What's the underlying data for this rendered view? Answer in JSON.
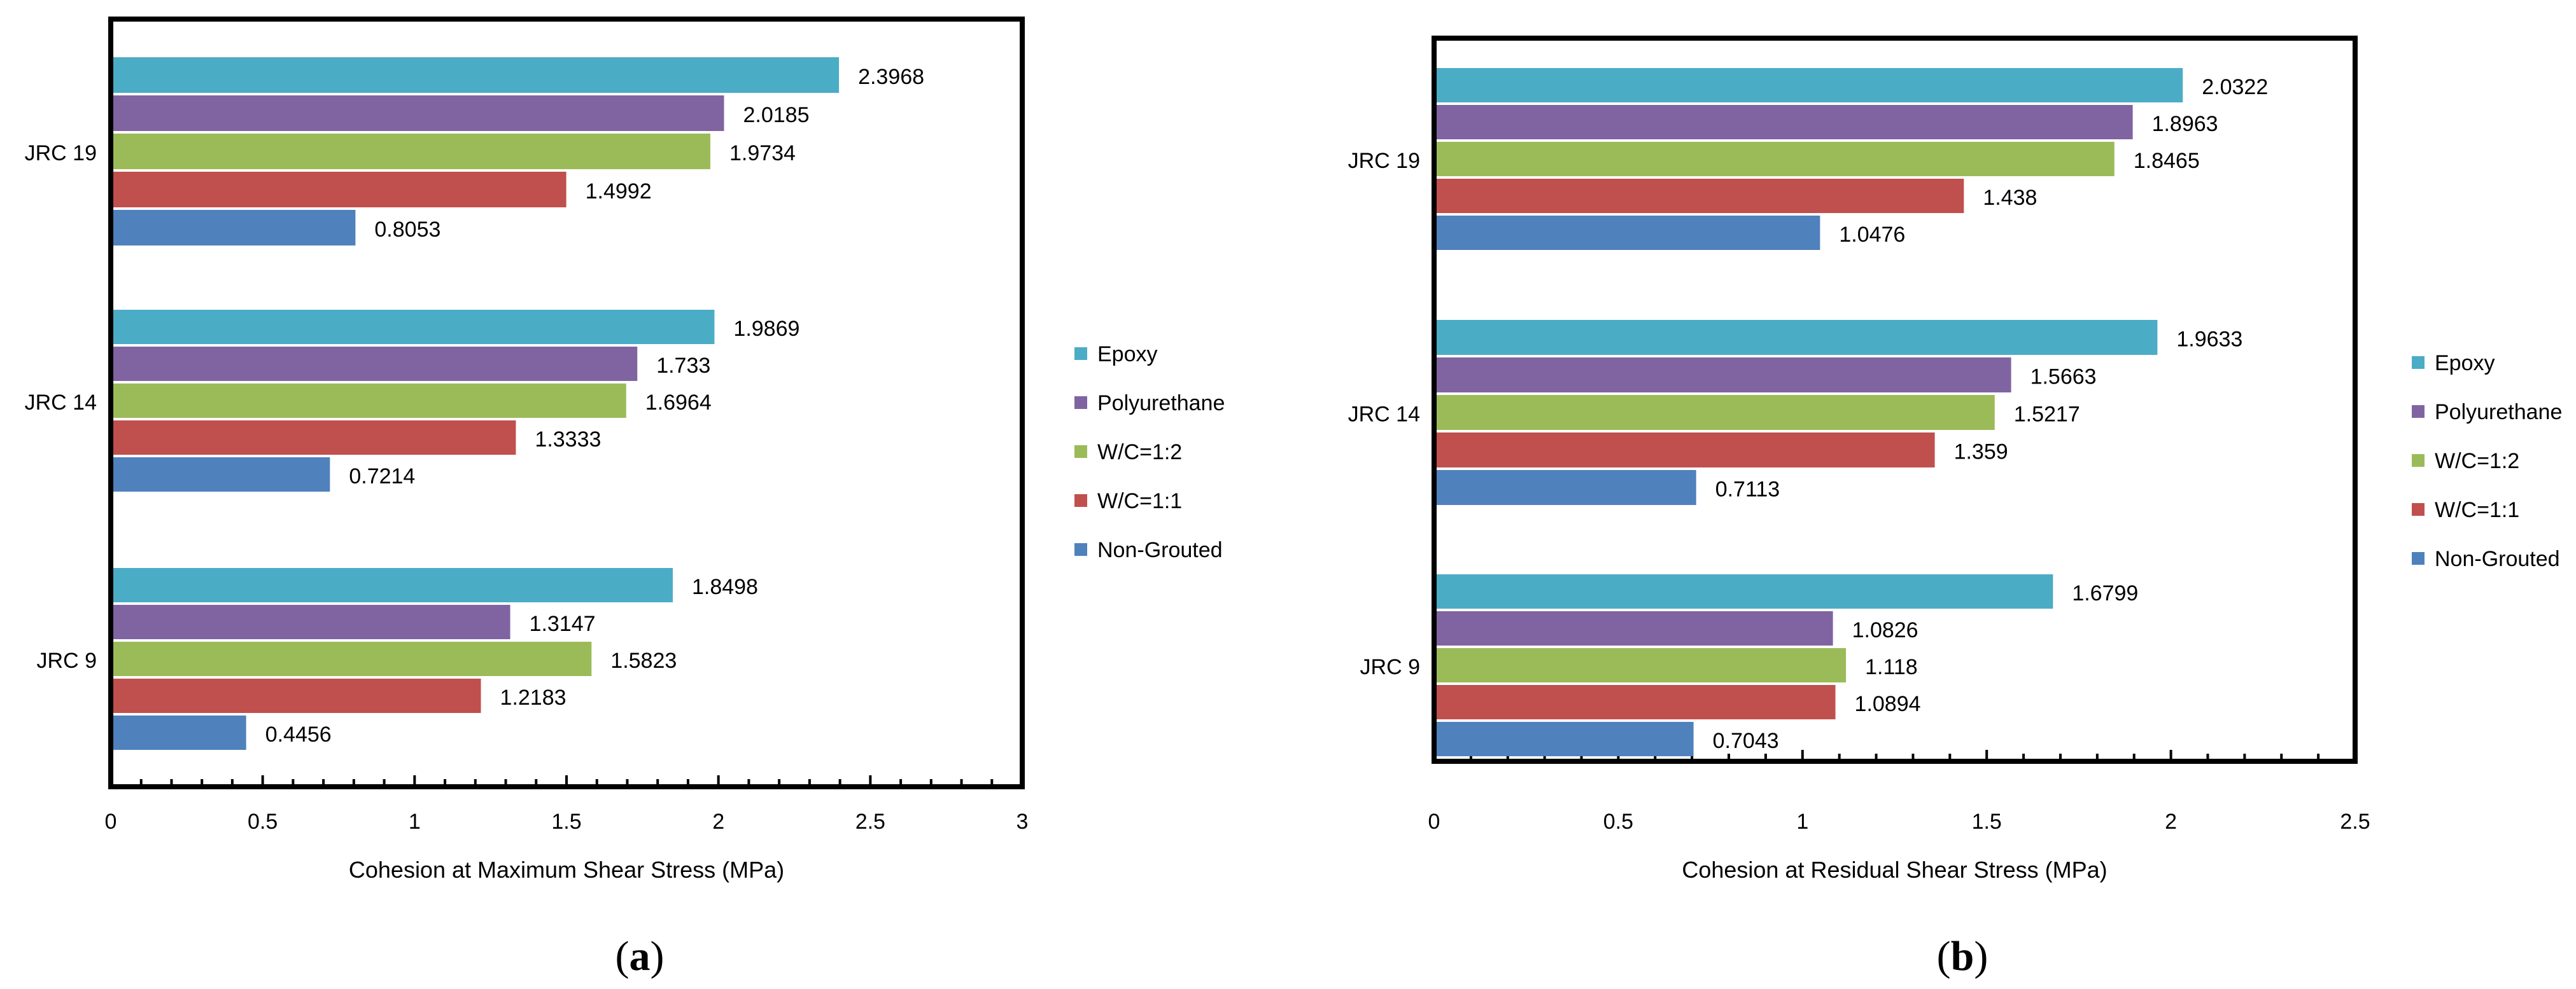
{
  "chart_data": [
    {
      "type": "bar",
      "orientation": "horizontal",
      "panel_label": "(a)",
      "panel_letter": "a",
      "xlabel": "Cohesion at Maximum Shear Stress (MPa)",
      "xlim": [
        0,
        3
      ],
      "xticks": [
        "0",
        "0.5",
        "1",
        "1.5",
        "2",
        "2.5",
        "3"
      ],
      "categories": [
        "JRC 19",
        "JRC 14",
        "JRC 9"
      ],
      "legend_position": "right",
      "series": [
        {
          "name": "Epoxy",
          "color": "#4BACC6",
          "values": [
            2.3968,
            1.9869,
            1.8498
          ],
          "labels": [
            "2.3968",
            "1.9869",
            "1.8498"
          ]
        },
        {
          "name": "Polyurethane",
          "color": "#8064A2",
          "values": [
            2.0185,
            1.733,
            1.3147
          ],
          "labels": [
            "2.0185",
            "1.733",
            "1.3147"
          ]
        },
        {
          "name": "W/C=1:2",
          "color": "#9BBB59",
          "values": [
            1.9734,
            1.6964,
            1.5823
          ],
          "labels": [
            "1.9734",
            "1.6964",
            "1.5823"
          ]
        },
        {
          "name": "W/C=1:1",
          "color": "#C0504D",
          "values": [
            1.4992,
            1.3333,
            1.2183
          ],
          "labels": [
            "1.4992",
            "1.3333",
            "1.2183"
          ]
        },
        {
          "name": "Non-Grouted",
          "color": "#4F81BD",
          "values": [
            0.8053,
            0.7214,
            0.4456
          ],
          "labels": [
            "0.8053",
            "0.7214",
            "0.4456"
          ]
        }
      ]
    },
    {
      "type": "bar",
      "orientation": "horizontal",
      "panel_label": "(b)",
      "panel_letter": "b",
      "xlabel": "Cohesion at Residual Shear Stress (MPa)",
      "xlim": [
        0,
        2.5
      ],
      "xticks": [
        "0",
        "0.5",
        "1",
        "1.5",
        "2",
        "2.5"
      ],
      "categories": [
        "JRC 19",
        "JRC 14",
        "JRC 9"
      ],
      "legend_position": "right",
      "series": [
        {
          "name": "Epoxy",
          "color": "#4BACC6",
          "values": [
            2.0322,
            1.9633,
            1.6799
          ],
          "labels": [
            "2.0322",
            "1.9633",
            "1.6799"
          ]
        },
        {
          "name": "Polyurethane",
          "color": "#8064A2",
          "values": [
            1.8963,
            1.5663,
            1.0826
          ],
          "labels": [
            "1.8963",
            "1.5663",
            "1.0826"
          ]
        },
        {
          "name": "W/C=1:2",
          "color": "#9BBB59",
          "values": [
            1.8465,
            1.5217,
            1.118
          ],
          "labels": [
            "1.8465",
            "1.5217",
            "1.118"
          ]
        },
        {
          "name": "W/C=1:1",
          "color": "#C0504D",
          "values": [
            1.438,
            1.359,
            1.0894
          ],
          "labels": [
            "1.438",
            "1.359",
            "1.0894"
          ]
        },
        {
          "name": "Non-Grouted",
          "color": "#4F81BD",
          "values": [
            1.0476,
            0.7113,
            0.7043
          ],
          "labels": [
            "1.0476",
            "0.7113",
            "0.7043"
          ]
        }
      ]
    }
  ]
}
